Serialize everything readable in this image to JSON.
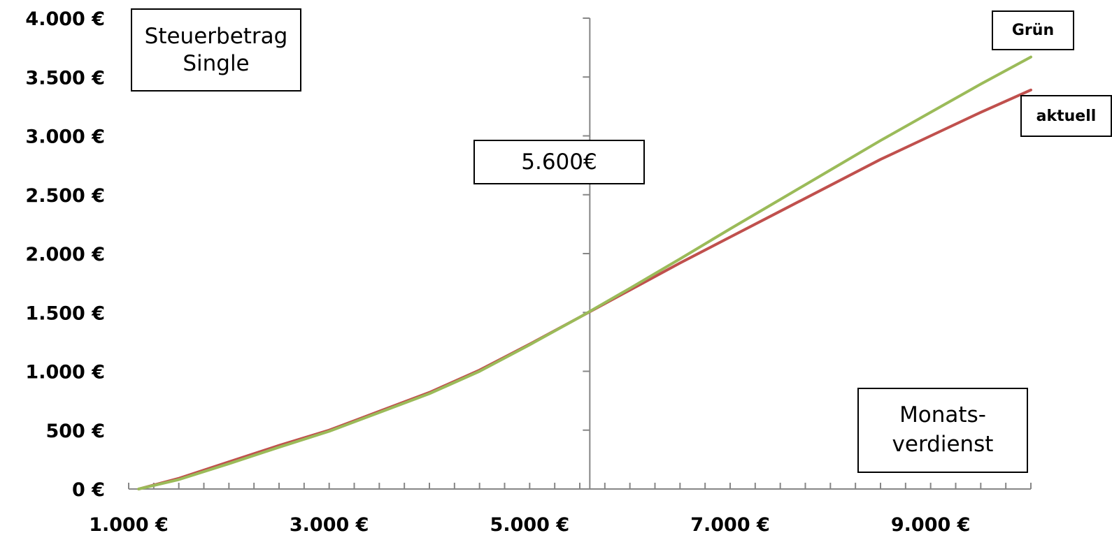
{
  "chart_data": {
    "type": "line",
    "title": "Steuerbetrag\nSingle",
    "xlabel": "Monats-\nverdienst",
    "ylabel": "",
    "xlim": [
      1000,
      10000
    ],
    "ylim": [
      0,
      4000
    ],
    "x_ticks": [
      1000,
      3000,
      5000,
      7000,
      9000
    ],
    "x_tick_labels": [
      "1.000 €",
      "3.000 €",
      "5.000 €",
      "7.000 €",
      "9.000 €"
    ],
    "y_ticks": [
      0,
      500,
      1000,
      1500,
      2000,
      2500,
      3000,
      3500,
      4000
    ],
    "y_tick_labels": [
      "0 €",
      "500 €",
      "1.000 €",
      "1.500 €",
      "2.000 €",
      "2.500 €",
      "3.000 €",
      "3.500 €",
      "4.000 €"
    ],
    "x": [
      1100,
      1500,
      2000,
      2500,
      3000,
      3500,
      4000,
      4500,
      5000,
      5500,
      6000,
      6500,
      7000,
      7500,
      8000,
      8500,
      9000,
      9500,
      10000
    ],
    "series": [
      {
        "name": "aktuell",
        "color": "#c0504d",
        "values": [
          0,
          90,
          230,
          370,
          500,
          660,
          820,
          1010,
          1230,
          1460,
          1690,
          1920,
          2140,
          2360,
          2580,
          2800,
          3000,
          3200,
          3390
        ]
      },
      {
        "name": "Grün",
        "color": "#9bbb59",
        "values": [
          0,
          80,
          215,
          355,
          490,
          650,
          810,
          1000,
          1225,
          1460,
          1705,
          1955,
          2210,
          2460,
          2710,
          2960,
          3200,
          3440,
          3670
        ]
      }
    ],
    "annotations": [
      {
        "text": "5.600€"
      }
    ],
    "reference_line_x": 5600,
    "grid": false
  }
}
